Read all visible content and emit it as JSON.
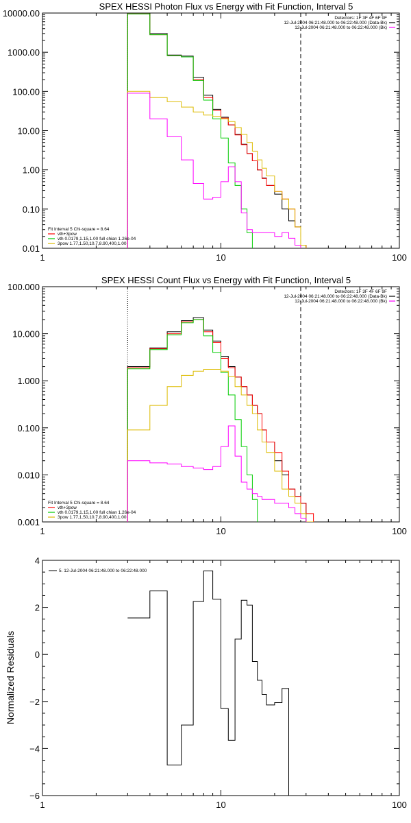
{
  "chart_data": [
    {
      "type": "line",
      "title": "SPEX HESSI Photon Flux vs Energy with Fit Function, Interval 5",
      "xscale": "log",
      "yscale": "log",
      "xlim": [
        1,
        100
      ],
      "ylim": [
        0.01,
        10000
      ],
      "x_ticks": [
        "1",
        "10",
        "100"
      ],
      "y_ticks": [
        "10000.00",
        "1000.00",
        "100.00",
        "10.00",
        "1.00",
        "0.10",
        "0.01"
      ],
      "x_ticks_v": [
        1,
        10,
        100
      ],
      "y_ticks_v": [
        10000,
        1000,
        100,
        10,
        1,
        0.1,
        0.01
      ],
      "vlines": [
        {
          "x": 3,
          "style": "dotted"
        },
        {
          "x": 28,
          "style": "dashed"
        }
      ],
      "legend_top": [
        "Detectors: 1F 3F 4F 6F 9F",
        "12-Jul-2004 06:21:48.000 to 06:22:48.000 (Data-Bk)",
        "12-Jul-2004 06:21:48.000 to 06:22:48.000 (Bk)"
      ],
      "legend_top_colors": [
        "",
        "#000000",
        "#ff00ff"
      ],
      "legend_bottom": [
        "Fit Interval 5   Chi-square = 8.64",
        "vth+3pow",
        "vth 0.0179,1.15,1.00  full chian 1.26e-04",
        "3pow 1.77,1.50,10.7,8.90,400,1.00"
      ],
      "legend_bottom_colors": [
        "",
        "#ff0000",
        "#00cc00",
        "#ddbb00"
      ],
      "edges": [
        3,
        4,
        5,
        6,
        7,
        8,
        9,
        10,
        11,
        12,
        13,
        14,
        15,
        16,
        17,
        18,
        20,
        22,
        24,
        26,
        28,
        30
      ],
      "series": [
        {
          "color": "#000000",
          "values": [
            10000,
            3000,
            850,
            800,
            230,
            80,
            35,
            22,
            14,
            8,
            4.5,
            2.6,
            1.7,
            1.0,
            0.62,
            0.4,
            0.24,
            0.1,
            0.05,
            0.035,
            0.012
          ]
        },
        {
          "color": "#ff0000",
          "values": [
            9500,
            2800,
            820,
            760,
            200,
            70,
            33,
            21,
            14,
            7.8,
            4.4,
            2.6,
            1.7,
            1.0,
            0.6,
            0.4,
            0.28,
            0.18,
            0.1,
            0.035,
            0.012
          ]
        },
        {
          "color": "#00cc00",
          "values": [
            9500,
            2800,
            820,
            760,
            190,
            60,
            20,
            6.5,
            1.5,
            0.4,
            0.1,
            0.025,
            0.006
          ]
        },
        {
          "color": "#ddbb00",
          "values": [
            100,
            70,
            55,
            40,
            30,
            25,
            23,
            20,
            17,
            12,
            8.0,
            5.0,
            3.0,
            1.8,
            1.1,
            0.7,
            0.28,
            0.18,
            0.1,
            0.035,
            0.012
          ]
        },
        {
          "color": "#ff00ff",
          "values": [
            90,
            20,
            7,
            1.8,
            0.45,
            0.18,
            0.2,
            0.5,
            1.2,
            0.5,
            0.08,
            0.03,
            0.025,
            0.025,
            0.025,
            0.025,
            0.02,
            0.025,
            0.018,
            0.012
          ]
        }
      ]
    },
    {
      "type": "line",
      "title": "SPEX HESSI Count Flux vs Energy with Fit Function, Interval 5",
      "xscale": "log",
      "yscale": "log",
      "xlim": [
        1,
        100
      ],
      "ylim": [
        0.001,
        100
      ],
      "x_ticks": [
        "1",
        "10",
        "100"
      ],
      "y_ticks": [
        "100.000",
        "10.000",
        "1.000",
        "0.100",
        "0.010",
        "0.001"
      ],
      "x_ticks_v": [
        1,
        10,
        100
      ],
      "y_ticks_v": [
        100,
        10,
        1,
        0.1,
        0.01,
        0.001
      ],
      "vlines": [
        {
          "x": 3,
          "style": "dotted"
        },
        {
          "x": 28,
          "style": "dashed"
        }
      ],
      "legend_top": [
        "Detectors: 1F 3F 4F 6F 9F",
        "12-Jul-2004 06:21:48.000 to 06:22:48.000 (Data-Bk)",
        "12-Jul-2004 06:21:48.000 to 06:22:48.000 (Bk)"
      ],
      "legend_top_colors": [
        "",
        "#000000",
        "#ff00ff"
      ],
      "legend_bottom": [
        "Fit Interval 5   Chi-square = 8.64",
        "vth+3pow",
        "vth 0.0179,1.15,1.00  full chian 1.26e-04",
        "3pow 1.77,1.50,10.7,8.90,400,1.00"
      ],
      "legend_bottom_colors": [
        "",
        "#ff0000",
        "#00cc00",
        "#ddbb00"
      ],
      "edges": [
        3,
        4,
        5,
        6,
        7,
        8,
        9,
        10,
        11,
        12,
        13,
        14,
        15,
        16,
        17,
        18,
        20,
        22,
        24,
        26,
        28,
        30,
        33
      ],
      "series": [
        {
          "color": "#000000",
          "values": [
            2.0,
            5.0,
            11,
            19,
            22,
            12,
            7.0,
            3.3,
            2.0,
            1.2,
            0.75,
            0.5,
            0.3,
            0.2,
            0.09,
            0.05,
            0.02,
            0.01,
            0.005,
            0.0035,
            0.0025
          ]
        },
        {
          "color": "#ff0000",
          "values": [
            1.9,
            4.8,
            10,
            18,
            20,
            11,
            6.5,
            3.0,
            1.9,
            1.2,
            0.75,
            0.5,
            0.3,
            0.2,
            0.09,
            0.05,
            0.03,
            0.012,
            0.005,
            0.0035,
            0.0025,
            0.0015
          ]
        },
        {
          "color": "#00cc00",
          "values": [
            1.8,
            4.6,
            9.5,
            17,
            20,
            9,
            4.0,
            1.5,
            0.5,
            0.15,
            0.04,
            0.01,
            0.003,
            0.0006
          ]
        },
        {
          "color": "#ddbb00",
          "values": [
            0.09,
            0.3,
            0.75,
            1.3,
            1.6,
            1.75,
            1.75,
            1.6,
            1.25,
            0.75,
            0.5,
            0.3,
            0.2,
            0.09,
            0.05,
            0.03,
            0.012,
            0.005,
            0.0035,
            0.0025,
            0.0015,
            0.001
          ]
        },
        {
          "color": "#ff00ff",
          "values": [
            0.02,
            0.018,
            0.017,
            0.015,
            0.014,
            0.013,
            0.015,
            0.04,
            0.11,
            0.025,
            0.007,
            0.005,
            0.004,
            0.0035,
            0.003,
            0.003,
            0.0025,
            0.0025,
            0.002,
            0.0015,
            0.0012
          ]
        }
      ]
    },
    {
      "type": "line",
      "title": "",
      "xscale": "log",
      "yscale": "linear",
      "xlim": [
        1,
        100
      ],
      "ylim": [
        -6,
        4
      ],
      "ylabel": "Normalized Residuals",
      "x_ticks": [
        "1",
        "10",
        "100"
      ],
      "y_ticks": [
        "4",
        "2",
        "0",
        "−2",
        "−4",
        "−6"
      ],
      "x_ticks_v": [
        1,
        10,
        100
      ],
      "y_ticks_v": [
        4,
        2,
        0,
        -2,
        -4,
        -6
      ],
      "legend_top_left": "5. 12-Jul-2004 06:21:48.000 to 06:22:48.000",
      "edges": [
        3,
        4,
        5,
        6,
        7,
        8,
        9,
        10,
        11,
        12,
        13,
        14,
        15,
        16,
        17,
        18,
        20,
        22,
        24,
        26,
        28
      ],
      "series": [
        {
          "color": "#000000",
          "values": [
            1.55,
            2.7,
            -4.7,
            -3.0,
            2.25,
            3.55,
            2.35,
            -2.3,
            -3.65,
            0.65,
            2.3,
            2.1,
            -0.3,
            -1.1,
            -1.7,
            -2.15,
            -2.05,
            -1.45
          ]
        }
      ]
    }
  ]
}
